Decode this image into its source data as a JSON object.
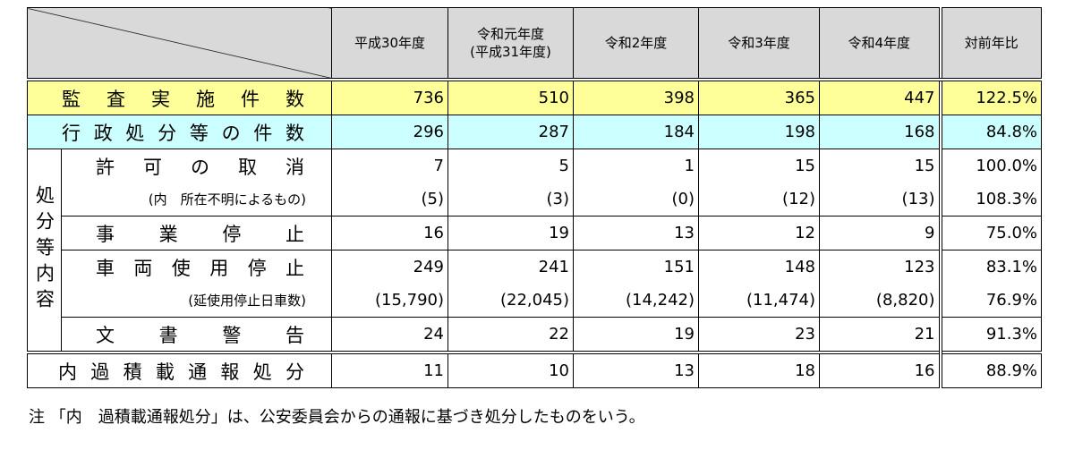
{
  "table": {
    "header": [
      "平成30年度",
      "令和元年度\n(平成31年度)",
      "令和2年度",
      "令和3年度",
      "令和4年度",
      "対前年比"
    ],
    "summary_rows": [
      {
        "label": "監査実施件数",
        "values": [
          "736",
          "510",
          "398",
          "365",
          "447",
          "122.5%"
        ]
      },
      {
        "label": "行政処分等の件数",
        "values": [
          "296",
          "287",
          "184",
          "198",
          "168",
          "84.8%"
        ]
      }
    ],
    "group": {
      "label": "処分等内容",
      "rows": [
        {
          "label": "許可の取消",
          "values": [
            "7",
            "5",
            "1",
            "15",
            "15",
            "100.0%"
          ]
        },
        {
          "label": "(内　所在不明によるもの)",
          "values": [
            "(5)",
            "(3)",
            "(0)",
            "(12)",
            "(13)",
            "108.3%"
          ]
        },
        {
          "label": "事業停止",
          "values": [
            "16",
            "19",
            "13",
            "12",
            "9",
            "75.0%"
          ]
        },
        {
          "label": "車両使用停止",
          "values": [
            "249",
            "241",
            "151",
            "148",
            "123",
            "83.1%"
          ]
        },
        {
          "label": "(延使用停止日車数)",
          "values": [
            "(15,790)",
            "(22,045)",
            "(14,242)",
            "(11,474)",
            "(8,820)",
            "76.9%"
          ]
        },
        {
          "label": "文書警告",
          "values": [
            "24",
            "22",
            "19",
            "23",
            "21",
            "91.3%"
          ]
        }
      ]
    },
    "last_row": {
      "label": "内過積載通報処分",
      "values": [
        "11",
        "10",
        "13",
        "18",
        "16",
        "88.9%"
      ]
    }
  },
  "note": "注 「内　過積載通報処分」は、公安委員会からの通報に基づき処分したものをいう。"
}
